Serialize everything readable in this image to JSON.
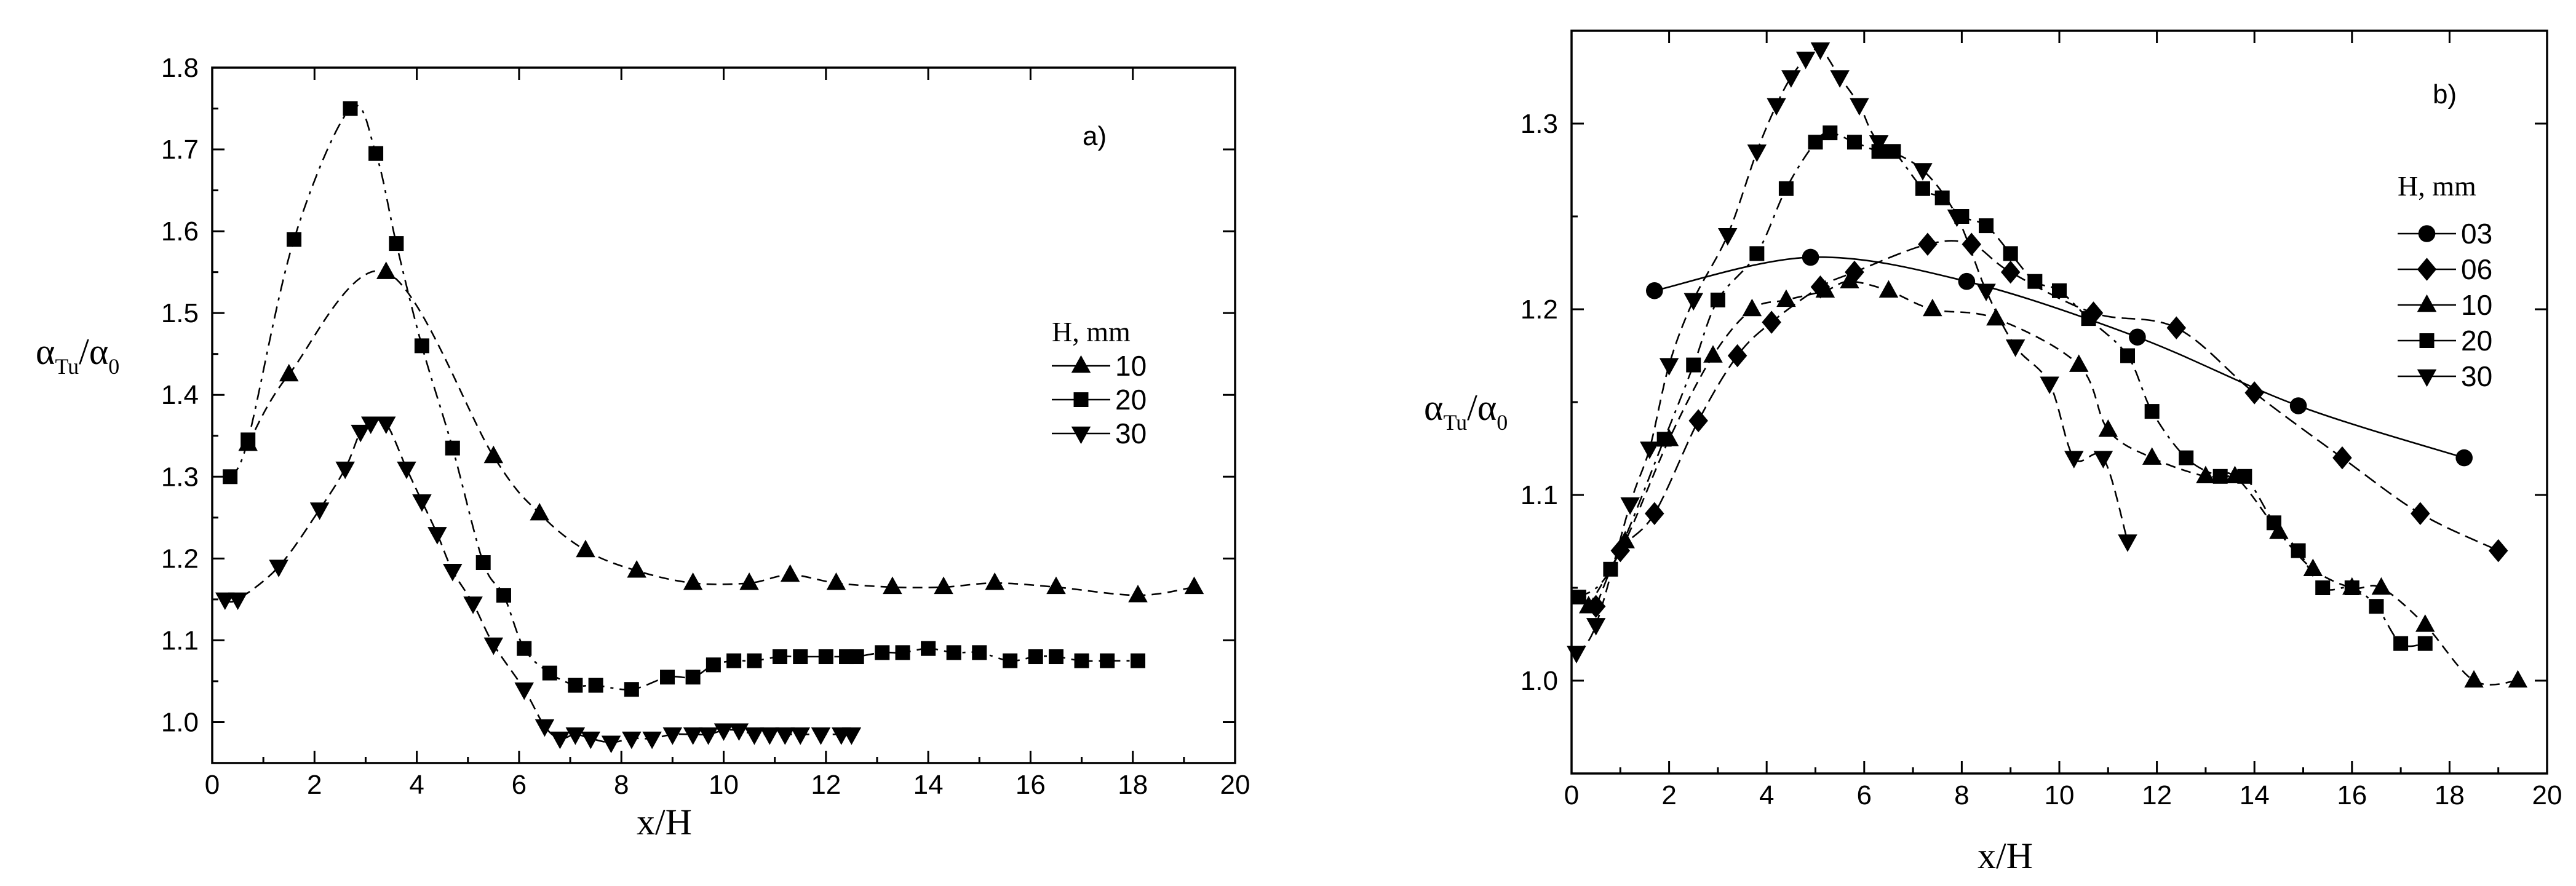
{
  "chart_data": [
    {
      "type": "line",
      "panel_label": "a)",
      "xlabel": "x/H",
      "ylabel": "αTu/α0",
      "ylabel_parts": {
        "alpha": "α",
        "sub1": "Tu",
        "slash": "/",
        "alpha2": "α",
        "sub2": "0"
      },
      "xlim": [
        0,
        20
      ],
      "ylim": [
        0.95,
        1.8
      ],
      "xticks": [
        0,
        2,
        4,
        6,
        8,
        10,
        12,
        14,
        16,
        18,
        20
      ],
      "xtick_labels": [
        "0",
        "2",
        "4",
        "6",
        "8",
        "10",
        "12",
        "14",
        "16",
        "18",
        "20"
      ],
      "yticks": [
        1.0,
        1.1,
        1.2,
        1.3,
        1.4,
        1.5,
        1.6,
        1.7,
        1.8
      ],
      "ytick_labels": [
        "1.0",
        "1.1",
        "1.2",
        "1.3",
        "1.4",
        "1.5",
        "1.6",
        "1.7",
        "1.8"
      ],
      "legend_title": "H, mm",
      "legend_position": "right",
      "series": [
        {
          "name": "10",
          "marker": "triangle-up",
          "x": [
            0.7,
            1.5,
            3.4,
            5.5,
            6.4,
            7.3,
            8.3,
            9.4,
            10.5,
            11.3,
            12.2,
            13.3,
            14.3,
            15.3,
            16.5,
            18.1,
            19.2
          ],
          "y": [
            1.34,
            1.425,
            1.55,
            1.325,
            1.255,
            1.21,
            1.185,
            1.17,
            1.17,
            1.18,
            1.17,
            1.165,
            1.165,
            1.17,
            1.165,
            1.155,
            1.165
          ]
        },
        {
          "name": "20",
          "marker": "square",
          "x": [
            0.35,
            0.7,
            1.6,
            2.7,
            3.2,
            3.6,
            4.1,
            4.7,
            5.3,
            5.7,
            6.1,
            6.6,
            7.1,
            7.5,
            8.2,
            8.9,
            9.4,
            9.8,
            10.2,
            10.6,
            11.1,
            11.5,
            12.0,
            12.4,
            12.6,
            13.1,
            13.5,
            14.0,
            14.5,
            15.0,
            15.6,
            16.1,
            16.5,
            17.0,
            17.5,
            18.1
          ],
          "y": [
            1.3,
            1.345,
            1.59,
            1.75,
            1.695,
            1.585,
            1.46,
            1.335,
            1.195,
            1.155,
            1.09,
            1.06,
            1.045,
            1.045,
            1.04,
            1.055,
            1.055,
            1.07,
            1.075,
            1.075,
            1.08,
            1.08,
            1.08,
            1.08,
            1.08,
            1.085,
            1.085,
            1.09,
            1.085,
            1.085,
            1.075,
            1.08,
            1.08,
            1.075,
            1.075,
            1.075
          ]
        },
        {
          "name": "30",
          "marker": "triangle-down",
          "x": [
            0.25,
            0.5,
            1.3,
            2.1,
            2.6,
            2.9,
            3.1,
            3.4,
            3.8,
            4.1,
            4.4,
            4.7,
            5.1,
            5.5,
            6.1,
            6.5,
            6.8,
            7.1,
            7.4,
            7.8,
            8.2,
            8.6,
            9.0,
            9.4,
            9.7,
            10.0,
            10.3,
            10.6,
            10.9,
            11.2,
            11.5,
            11.9,
            12.3,
            12.5
          ],
          "y": [
            1.15,
            1.15,
            1.19,
            1.26,
            1.31,
            1.355,
            1.365,
            1.365,
            1.31,
            1.27,
            1.23,
            1.185,
            1.145,
            1.095,
            1.04,
            0.995,
            0.98,
            0.985,
            0.98,
            0.975,
            0.98,
            0.98,
            0.985,
            0.985,
            0.985,
            0.99,
            0.99,
            0.985,
            0.985,
            0.985,
            0.985,
            0.985,
            0.985,
            0.985
          ]
        }
      ]
    },
    {
      "type": "line",
      "panel_label": "b)",
      "xlabel": "x/H",
      "ylabel": "αTu/α0",
      "ylabel_parts": {
        "alpha": "α",
        "sub1": "Tu",
        "slash": "/",
        "alpha2": "α",
        "sub2": "0"
      },
      "xlim": [
        0,
        20
      ],
      "ylim": [
        0.95,
        1.35
      ],
      "xticks": [
        0,
        2,
        4,
        6,
        8,
        10,
        12,
        14,
        16,
        18,
        20
      ],
      "xtick_labels": [
        "0",
        "2",
        "4",
        "6",
        "8",
        "10",
        "12",
        "14",
        "16",
        "18",
        "20"
      ],
      "yticks": [
        1.0,
        1.1,
        1.2,
        1.3
      ],
      "ytick_labels": [
        "1.0",
        "1.1",
        "1.2",
        "1.3"
      ],
      "legend_title": "H, mm",
      "legend_position": "right",
      "series": [
        {
          "name": "03",
          "marker": "circle",
          "x": [
            1.7,
            4.9,
            8.1,
            11.6,
            14.9,
            18.3
          ],
          "y": [
            1.21,
            1.228,
            1.215,
            1.185,
            1.148,
            1.12
          ]
        },
        {
          "name": "06",
          "marker": "diamond",
          "x": [
            0.5,
            1.0,
            1.7,
            2.6,
            3.4,
            4.1,
            5.1,
            5.8,
            7.3,
            8.2,
            9.0,
            10.7,
            12.4,
            14.0,
            15.8,
            17.4,
            19.0
          ],
          "y": [
            1.04,
            1.07,
            1.09,
            1.14,
            1.175,
            1.193,
            1.212,
            1.22,
            1.235,
            1.235,
            1.22,
            1.198,
            1.19,
            1.155,
            1.12,
            1.09,
            1.07
          ]
        },
        {
          "name": "10",
          "marker": "triangle-up",
          "x": [
            0.35,
            1.1,
            2.0,
            2.9,
            3.7,
            4.4,
            5.2,
            5.7,
            6.5,
            7.4,
            8.7,
            10.4,
            11.0,
            11.9,
            13.0,
            13.6,
            14.5,
            15.2,
            16.0,
            16.6,
            17.5,
            18.5,
            19.4
          ],
          "y": [
            1.04,
            1.075,
            1.13,
            1.175,
            1.2,
            1.205,
            1.21,
            1.215,
            1.21,
            1.2,
            1.195,
            1.17,
            1.135,
            1.12,
            1.11,
            1.11,
            1.08,
            1.06,
            1.05,
            1.05,
            1.03,
            1.0,
            1.0
          ]
        },
        {
          "name": "20",
          "marker": "square",
          "x": [
            0.15,
            0.8,
            1.9,
            2.5,
            3.0,
            3.8,
            4.4,
            5.0,
            5.3,
            5.8,
            6.3,
            6.6,
            7.2,
            7.6,
            8.0,
            8.5,
            9.0,
            9.5,
            10.0,
            10.6,
            11.4,
            11.9,
            12.6,
            13.3,
            13.8,
            14.4,
            14.9,
            15.4,
            16.0,
            16.5,
            17.0,
            17.5
          ],
          "y": [
            1.045,
            1.06,
            1.13,
            1.17,
            1.205,
            1.23,
            1.265,
            1.29,
            1.295,
            1.29,
            1.285,
            1.285,
            1.265,
            1.26,
            1.25,
            1.245,
            1.23,
            1.215,
            1.21,
            1.195,
            1.175,
            1.145,
            1.12,
            1.11,
            1.11,
            1.085,
            1.07,
            1.05,
            1.05,
            1.04,
            1.02,
            1.02
          ]
        },
        {
          "name": "30",
          "marker": "triangle-down",
          "x": [
            0.1,
            0.5,
            1.2,
            1.6,
            2.0,
            2.5,
            3.2,
            3.8,
            4.2,
            4.5,
            4.8,
            5.1,
            5.5,
            5.9,
            6.3,
            7.2,
            7.9,
            8.5,
            9.1,
            9.8,
            10.3,
            10.9,
            11.4
          ],
          "y": [
            1.015,
            1.03,
            1.095,
            1.125,
            1.17,
            1.205,
            1.24,
            1.285,
            1.31,
            1.325,
            1.335,
            1.34,
            1.325,
            1.31,
            1.29,
            1.275,
            1.25,
            1.21,
            1.18,
            1.16,
            1.12,
            1.12,
            1.075
          ]
        }
      ]
    }
  ]
}
